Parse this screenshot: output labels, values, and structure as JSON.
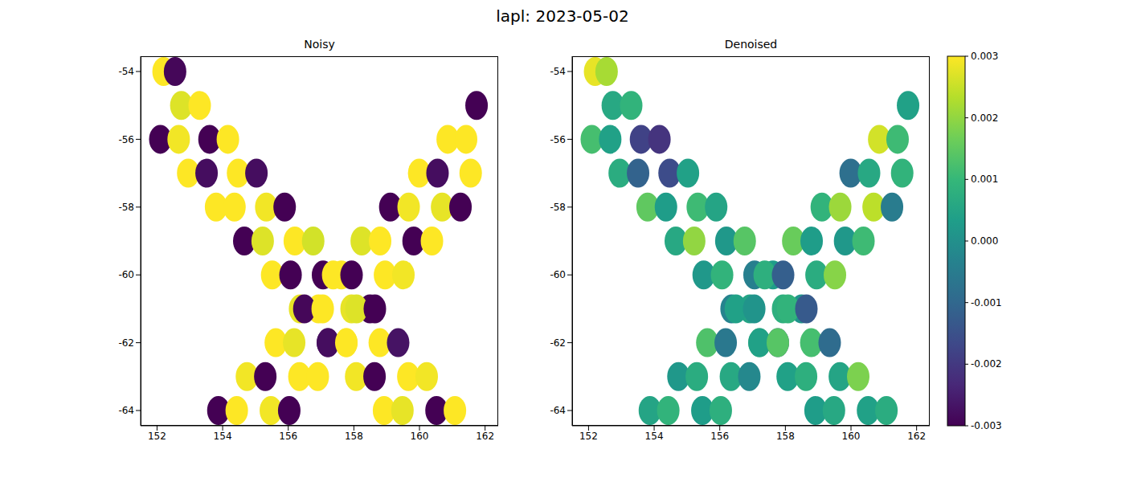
{
  "chart_data": {
    "type": "scatter",
    "title": "lapl: 2023-05-02",
    "x": [
      152.2,
      152.55,
      152.74,
      153.3,
      153.6,
      154.16,
      154.47,
      155.03,
      155.33,
      155.89,
      156.2,
      156.76,
      157.06,
      157.62,
      157.93,
      158.49,
      158.79,
      159.35,
      159.66,
      160.22,
      160.52,
      161.08,
      152.1,
      152.66,
      152.95,
      153.51,
      153.8,
      154.36,
      154.66,
      155.22,
      155.51,
      156.07,
      156.36,
      156.92,
      157.21,
      157.77,
      158.07,
      158.63,
      158.92,
      159.48,
      153.87,
      154.43,
      154.74,
      155.3,
      155.62,
      156.18,
      156.49,
      157.05,
      157.37,
      157.93,
      158.24,
      158.8,
      159.11,
      159.67,
      159.99,
      160.55,
      160.86,
      161.42,
      161.74,
      155.47,
      156.03,
      156.34,
      156.9,
      157.21,
      157.77,
      158.08,
      158.64,
      158.95,
      159.51,
      159.82,
      160.38,
      160.69,
      161.25,
      161.56
    ],
    "y": [
      -54,
      -54,
      -55,
      -55,
      -56,
      -56,
      -57,
      -57,
      -58,
      -58,
      -59,
      -59,
      -60,
      -60,
      -61,
      -61,
      -62,
      -62,
      -63,
      -63,
      -64,
      -64,
      -56,
      -56,
      -57,
      -57,
      -58,
      -58,
      -59,
      -59,
      -60,
      -60,
      -61,
      -61,
      -62,
      -62,
      -63,
      -63,
      -64,
      -64,
      -64,
      -64,
      -63,
      -63,
      -62,
      -62,
      -61,
      -61,
      -60,
      -60,
      -59,
      -59,
      -58,
      -58,
      -57,
      -57,
      -56,
      -56,
      -55,
      -64,
      -64,
      -63,
      -63,
      -62,
      -62,
      -61,
      -61,
      -60,
      -60,
      -59,
      -59,
      -58,
      -58,
      -57
    ],
    "panels": [
      {
        "title": "Noisy",
        "values": [
          0.0031,
          -0.0029,
          0.0027,
          0.0033,
          -0.0032,
          0.003,
          0.0034,
          -0.0028,
          0.0029,
          -0.0031,
          0.0032,
          0.0026,
          -0.003,
          0.0031,
          0.0028,
          -0.0033,
          0.003,
          -0.0027,
          0.0033,
          0.0029,
          -0.0031,
          0.0032,
          -0.0032,
          0.0029,
          0.0031,
          -0.0028,
          0.0033,
          0.003,
          -0.0031,
          0.0027,
          0.0032,
          -0.003,
          0.0028,
          0.0031,
          -0.0033,
          0.003,
          0.0029,
          -0.0032,
          0.0031,
          0.0028,
          -0.003,
          0.0032,
          0.0029,
          -0.0031,
          0.0033,
          0.0028,
          -0.0029,
          0.0031,
          0.003,
          -0.0032,
          0.0027,
          0.0033,
          -0.003,
          0.0029,
          0.0031,
          -0.0028,
          0.0032,
          0.003,
          -0.0031,
          0.0029,
          -0.0033,
          0.0031,
          0.003,
          -0.0028,
          0.0032,
          0.0027,
          -0.0031,
          0.0033,
          0.0029,
          -0.003,
          0.0031,
          0.0028,
          -0.0032,
          0.003
        ]
      },
      {
        "title": "Denoised",
        "values": [
          0.0028,
          0.0022,
          0.0006,
          0.0009,
          -0.0018,
          -0.0021,
          -0.0016,
          0.0004,
          0.0011,
          0.0005,
          0.0002,
          0.0014,
          -0.0004,
          0.0003,
          0.0008,
          0.0001,
          0.0012,
          -0.0009,
          0.0005,
          0.0018,
          0.0004,
          0.0007,
          0.0012,
          0.0004,
          0.0007,
          -0.0011,
          0.0015,
          0.0003,
          0.0006,
          0.002,
          0.0002,
          0.0009,
          -0.0003,
          0.0005,
          0.0011,
          -0.0015,
          0.0004,
          0.0008,
          0.0003,
          0.0006,
          0.0005,
          0.0009,
          0.0002,
          0.0007,
          0.0013,
          -0.0006,
          0.0004,
          0.0001,
          0.0008,
          -0.0012,
          0.0016,
          0.0003,
          0.0009,
          0.0021,
          -0.0008,
          0.0006,
          0.0026,
          0.0011,
          0.0004,
          0.0003,
          0.0008,
          0.0006,
          -0.0002,
          0.0004,
          0.0014,
          0.0009,
          -0.0013,
          0.0007,
          0.0019,
          0.0002,
          0.0011,
          0.0024,
          -0.0005,
          0.0009
        ]
      }
    ],
    "xlim": [
      151.5,
      162.4
    ],
    "xticks": [
      152,
      154,
      156,
      158,
      160,
      162
    ],
    "ylim": [
      -64.45,
      -53.55
    ],
    "yticks": [
      -64,
      -62,
      -60,
      -58,
      -56,
      -54
    ],
    "colorbar": {
      "range": [
        -0.003,
        0.003
      ],
      "ticks": [
        -0.003,
        -0.002,
        -0.001,
        {
          "value": 0,
          "label": "0.000"
        },
        0.001,
        0.002,
        0.003
      ]
    }
  }
}
